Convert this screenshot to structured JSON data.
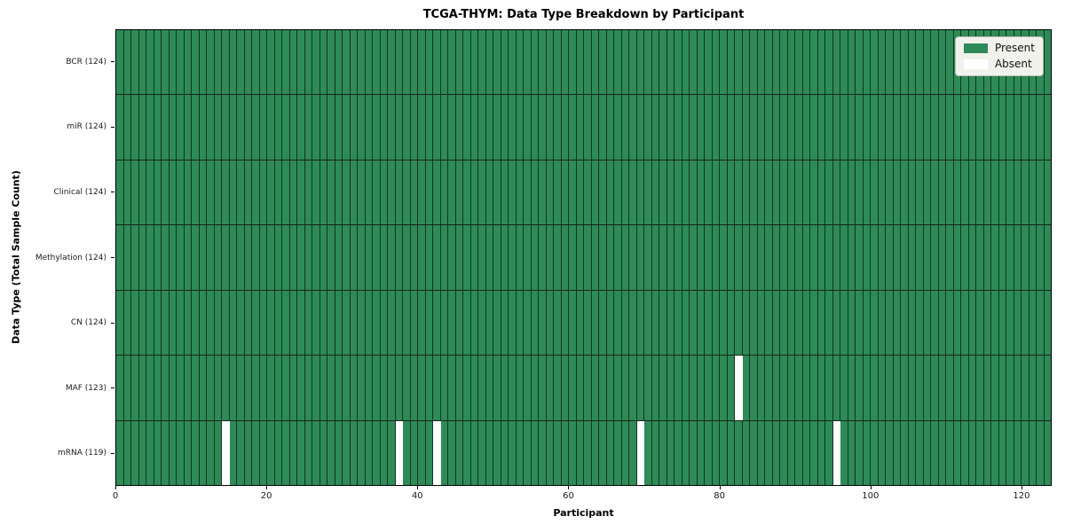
{
  "chart_data": {
    "type": "heatmap",
    "title": "TCGA-THYM: Data Type Breakdown by Participant",
    "xlabel": "Participant",
    "ylabel": "Data Type (Total Sample Count)",
    "n_participants": 124,
    "x_range": [
      0,
      124
    ],
    "x_ticks": [
      0,
      20,
      40,
      60,
      80,
      100,
      120
    ],
    "rows": [
      {
        "label": "BCR (124)",
        "data_type": "BCR",
        "present_count": 124,
        "absent_participants": []
      },
      {
        "label": "miR (124)",
        "data_type": "miR",
        "present_count": 124,
        "absent_participants": []
      },
      {
        "label": "Clinical (124)",
        "data_type": "Clinical",
        "present_count": 124,
        "absent_participants": []
      },
      {
        "label": "Methylation (124)",
        "data_type": "Methylation",
        "present_count": 124,
        "absent_participants": []
      },
      {
        "label": "CN (124)",
        "data_type": "CN",
        "present_count": 124,
        "absent_participants": []
      },
      {
        "label": "MAF (123)",
        "data_type": "MAF",
        "present_count": 123,
        "absent_participants": [
          82
        ]
      },
      {
        "label": "mRNA (119)",
        "data_type": "mRNA",
        "present_count": 119,
        "absent_participants": [
          14,
          37,
          42,
          69,
          95
        ]
      }
    ],
    "legend": [
      {
        "label": "Present",
        "color": "#2e8b57"
      },
      {
        "label": "Absent",
        "color": "#ffffff"
      }
    ],
    "grid": true,
    "legend_position": "upper right"
  }
}
